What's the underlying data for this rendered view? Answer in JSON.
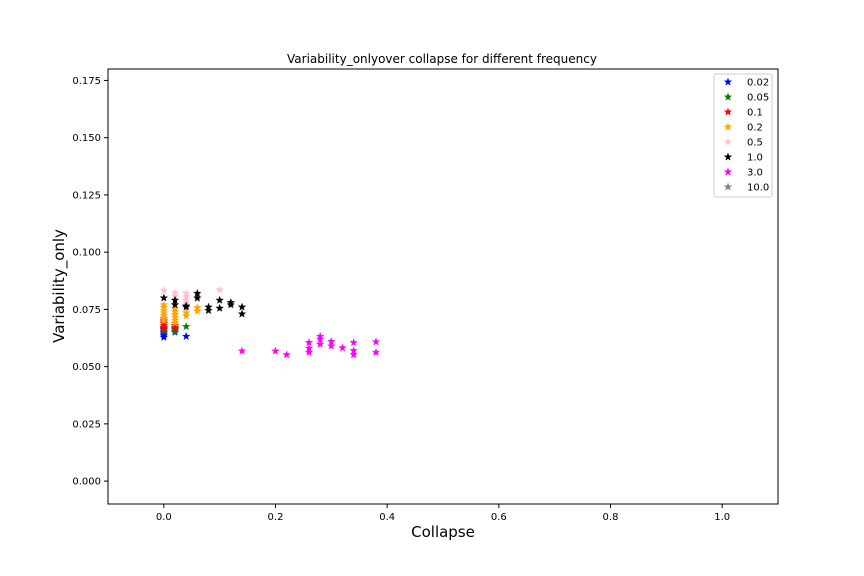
{
  "chart_data": {
    "type": "scatter",
    "title": "Variability_onlyover collapse for different frequency",
    "xlabel": "Collapse",
    "ylabel": "Variability_only",
    "xlim": [
      -0.1,
      1.1
    ],
    "ylim": [
      -0.01,
      0.18
    ],
    "xticks": [
      "0.0",
      "0.2",
      "0.4",
      "0.6",
      "0.8",
      "1.0"
    ],
    "xtick_values": [
      0.0,
      0.2,
      0.4,
      0.6,
      0.8,
      1.0
    ],
    "yticks": [
      "0.000",
      "0.025",
      "0.050",
      "0.075",
      "0.100",
      "0.125",
      "0.150",
      "0.175"
    ],
    "ytick_values": [
      0.0,
      0.025,
      0.05,
      0.075,
      0.1,
      0.125,
      0.15,
      0.175
    ],
    "grid": false,
    "legend_position": "top-right",
    "marker": "star",
    "series": [
      {
        "name": "0.02",
        "color": "#0000ff",
        "points": [
          [
            0,
            0.0628
          ],
          [
            0,
            0.0635
          ],
          [
            0,
            0.0642
          ],
          [
            0,
            0.0648
          ],
          [
            0,
            0.0655
          ],
          [
            0,
            0.0662
          ],
          [
            0.02,
            0.065
          ],
          [
            0.02,
            0.066
          ],
          [
            0.04,
            0.0632
          ]
        ]
      },
      {
        "name": "0.05",
        "color": "#008000",
        "points": [
          [
            0,
            0.0655
          ],
          [
            0,
            0.0668
          ],
          [
            0.02,
            0.0652
          ],
          [
            0.02,
            0.0665
          ],
          [
            0.02,
            0.0672
          ],
          [
            0.04,
            0.0675
          ]
        ]
      },
      {
        "name": "0.1",
        "color": "#ff0000",
        "points": [
          [
            0,
            0.0665
          ],
          [
            0,
            0.0672
          ],
          [
            0,
            0.068
          ],
          [
            0,
            0.0688
          ],
          [
            0,
            0.0695
          ],
          [
            0,
            0.0702
          ],
          [
            0,
            0.071
          ],
          [
            0.02,
            0.0668
          ],
          [
            0.02,
            0.068
          ],
          [
            0.02,
            0.069
          ]
        ]
      },
      {
        "name": "0.2",
        "color": "#ffa500",
        "points": [
          [
            0,
            0.07
          ],
          [
            0,
            0.0712
          ],
          [
            0,
            0.0722
          ],
          [
            0,
            0.0735
          ],
          [
            0,
            0.0745
          ],
          [
            0,
            0.0758
          ],
          [
            0,
            0.077
          ],
          [
            0.02,
            0.069
          ],
          [
            0.02,
            0.0702
          ],
          [
            0.02,
            0.0715
          ],
          [
            0.02,
            0.0728
          ],
          [
            0.02,
            0.074
          ],
          [
            0.02,
            0.0752
          ],
          [
            0.04,
            0.0722
          ],
          [
            0.04,
            0.0735
          ],
          [
            0.06,
            0.0742
          ],
          [
            0.06,
            0.0758
          ]
        ]
      },
      {
        "name": "0.5",
        "color": "#ffc0cb",
        "points": [
          [
            0,
            0.0832
          ],
          [
            0.02,
            0.0822
          ],
          [
            0.02,
            0.0808
          ],
          [
            0.04,
            0.082
          ],
          [
            0.04,
            0.0805
          ],
          [
            0.04,
            0.079
          ],
          [
            0.04,
            0.0775
          ],
          [
            0.06,
            0.0812
          ],
          [
            0.06,
            0.0795
          ],
          [
            0.1,
            0.0835
          ]
        ]
      },
      {
        "name": "1.0",
        "color": "#000000",
        "points": [
          [
            0,
            0.08
          ],
          [
            0.02,
            0.079
          ],
          [
            0.02,
            0.077
          ],
          [
            0.04,
            0.0765
          ],
          [
            0.04,
            0.076
          ],
          [
            0.06,
            0.082
          ],
          [
            0.06,
            0.08
          ],
          [
            0.08,
            0.076
          ],
          [
            0.08,
            0.0745
          ],
          [
            0.1,
            0.079
          ],
          [
            0.1,
            0.0755
          ],
          [
            0.12,
            0.078
          ],
          [
            0.12,
            0.077
          ],
          [
            0.14,
            0.076
          ],
          [
            0.14,
            0.073
          ]
        ]
      },
      {
        "name": "3.0",
        "color": "#ff00ff",
        "points": [
          [
            0.14,
            0.0568
          ],
          [
            0.2,
            0.0568
          ],
          [
            0.22,
            0.0552
          ],
          [
            0.26,
            0.0605
          ],
          [
            0.26,
            0.058
          ],
          [
            0.26,
            0.0562
          ],
          [
            0.28,
            0.0632
          ],
          [
            0.28,
            0.062
          ],
          [
            0.28,
            0.0598
          ],
          [
            0.3,
            0.061
          ],
          [
            0.3,
            0.059
          ],
          [
            0.32,
            0.0582
          ],
          [
            0.34,
            0.0605
          ],
          [
            0.34,
            0.057
          ],
          [
            0.34,
            0.0552
          ],
          [
            0.38,
            0.0608
          ],
          [
            0.38,
            0.0562
          ]
        ]
      },
      {
        "name": "10.0",
        "color": "#808080",
        "points": []
      }
    ]
  }
}
